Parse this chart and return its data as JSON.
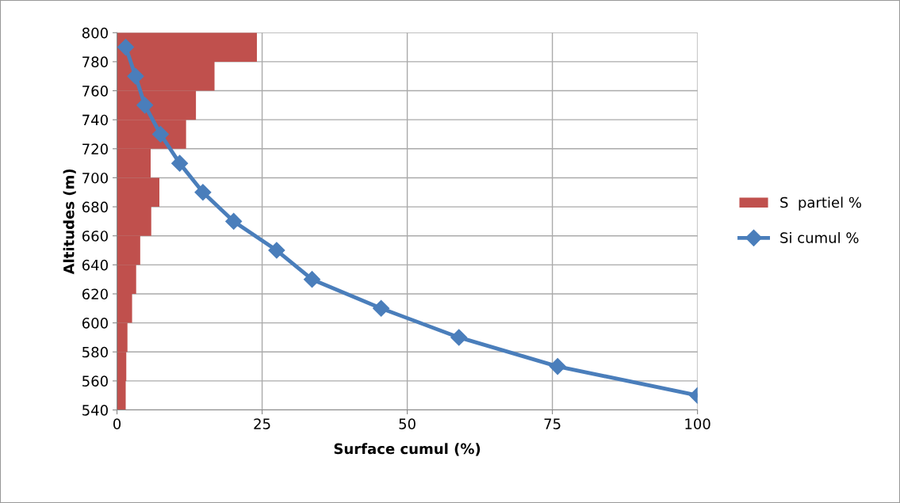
{
  "chart_data": {
    "type": "bar",
    "orientation": "horizontal",
    "xlabel": "Surface cumul (%)",
    "ylabel": "Altitudes (m)",
    "xlim": [
      0,
      100
    ],
    "xticks": [
      0,
      25,
      50,
      75,
      100
    ],
    "ylim": [
      540,
      800
    ],
    "yticks": [
      540,
      560,
      580,
      600,
      620,
      640,
      660,
      680,
      700,
      720,
      740,
      760,
      780,
      800
    ],
    "grid": true,
    "legend": "right",
    "series": [
      {
        "name": "S  partiel %",
        "color": "#c0504d",
        "x": [
          790,
          770,
          750,
          730,
          710,
          690,
          670,
          650,
          630,
          610,
          590,
          570,
          550
        ],
        "values": [
          24.1,
          16.8,
          13.6,
          11.9,
          5.8,
          7.3,
          5.9,
          4.0,
          3.3,
          2.6,
          1.8,
          1.6,
          1.5
        ]
      },
      {
        "name": "Si cumul %",
        "type": "line",
        "color": "#4a7ebb",
        "marker": "diamond",
        "x": [
          790,
          770,
          750,
          730,
          710,
          690,
          670,
          650,
          630,
          610,
          590,
          570,
          550
        ],
        "values": [
          1.5,
          3.2,
          4.8,
          7.5,
          10.8,
          14.8,
          20.1,
          27.5,
          33.6,
          45.5,
          58.9,
          75.9,
          100
        ]
      }
    ]
  }
}
